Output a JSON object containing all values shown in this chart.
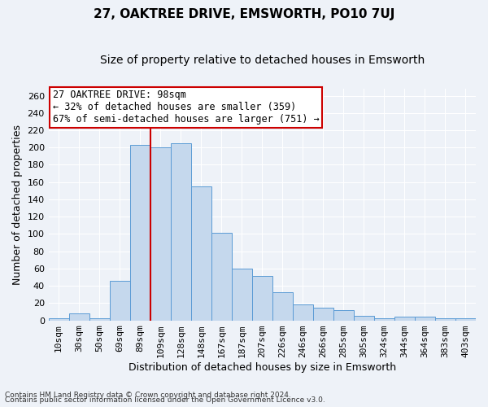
{
  "title": "27, OAKTREE DRIVE, EMSWORTH, PO10 7UJ",
  "subtitle": "Size of property relative to detached houses in Emsworth",
  "xlabel": "Distribution of detached houses by size in Emsworth",
  "ylabel": "Number of detached properties",
  "categories": [
    "10sqm",
    "30sqm",
    "50sqm",
    "69sqm",
    "89sqm",
    "109sqm",
    "128sqm",
    "148sqm",
    "167sqm",
    "187sqm",
    "207sqm",
    "226sqm",
    "246sqm",
    "266sqm",
    "285sqm",
    "305sqm",
    "324sqm",
    "344sqm",
    "364sqm",
    "383sqm",
    "403sqm"
  ],
  "values": [
    2,
    8,
    2,
    46,
    203,
    200,
    205,
    155,
    101,
    60,
    51,
    33,
    18,
    15,
    12,
    5,
    2,
    4,
    4,
    2,
    2
  ],
  "bar_color": "#c5d8ed",
  "bar_edge_color": "#5b9bd5",
  "vline_color": "#cc0000",
  "annotation_text": "27 OAKTREE DRIVE: 98sqm\n← 32% of detached houses are smaller (359)\n67% of semi-detached houses are larger (751) →",
  "annotation_box_color": "white",
  "annotation_box_edge_color": "#cc0000",
  "ylim_max": 268,
  "yticks": [
    0,
    20,
    40,
    60,
    80,
    100,
    120,
    140,
    160,
    180,
    200,
    220,
    240,
    260
  ],
  "footer1": "Contains HM Land Registry data © Crown copyright and database right 2024.",
  "footer2": "Contains public sector information licensed under the Open Government Licence v3.0.",
  "background_color": "#eef2f8",
  "grid_color": "#ffffff",
  "title_fontsize": 11,
  "subtitle_fontsize": 10,
  "xlabel_fontsize": 9,
  "ylabel_fontsize": 9,
  "tick_fontsize": 8,
  "annotation_fontsize": 8.5,
  "footer_fontsize": 6.5
}
